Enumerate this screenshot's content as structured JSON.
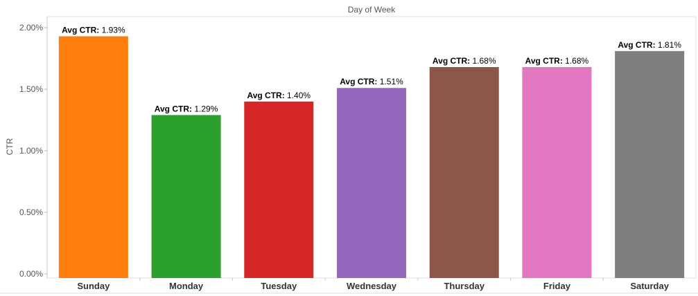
{
  "chart_data": {
    "type": "bar",
    "title": "Day of Week",
    "ylabel": "CTR",
    "xlabel": "",
    "ylim": [
      0,
      0.02
    ],
    "yticks": [
      "0.00%",
      "0.50%",
      "1.00%",
      "1.50%",
      "2.00%"
    ],
    "yticks_values": [
      0,
      0.005,
      0.01,
      0.015,
      0.02
    ],
    "categories": [
      "Sunday",
      "Monday",
      "Tuesday",
      "Wednesday",
      "Thursday",
      "Friday",
      "Saturday"
    ],
    "values": [
      0.0193,
      0.0129,
      0.014,
      0.0151,
      0.0168,
      0.0168,
      0.0181
    ],
    "data_label_name": "Avg CTR:",
    "data_labels": [
      "1.93%",
      "1.29%",
      "1.40%",
      "1.51%",
      "1.68%",
      "1.68%",
      "1.81%"
    ],
    "colors": [
      "#ff7f0e",
      "#2ca02c",
      "#d62728",
      "#9467bd",
      "#8c564b",
      "#e377c2",
      "#7f7f7f"
    ],
    "grid": false,
    "legend": "none"
  }
}
